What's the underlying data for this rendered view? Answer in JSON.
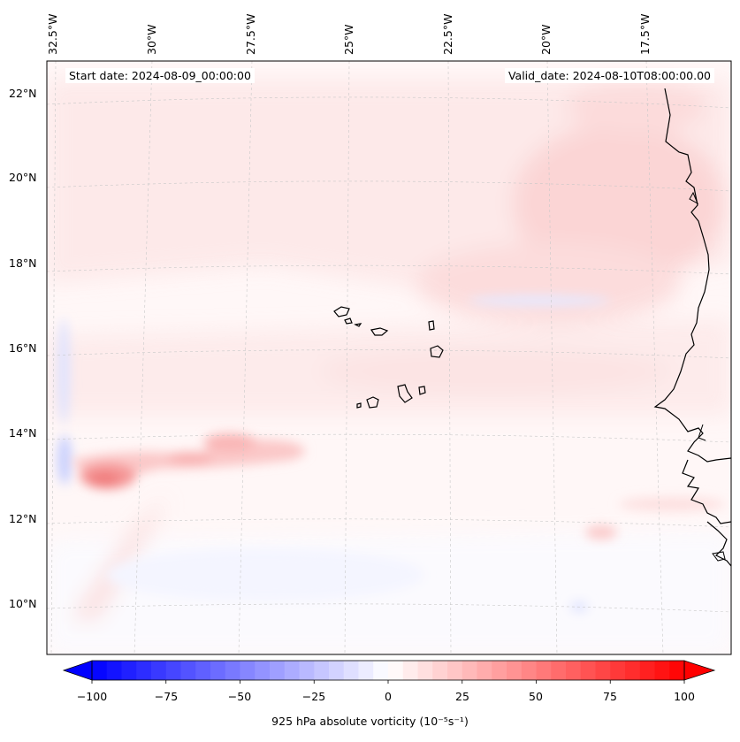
{
  "map": {
    "start_date": "Start date: 2024-08-09_00:00:00",
    "valid_date": "Valid_date: 2024-08-10T08:00:00.00",
    "longitude_labels": [
      "32.5°W",
      "30°W",
      "27.5°W",
      "25°W",
      "22.5°W",
      "20°W",
      "17.5°W"
    ],
    "latitude_labels": [
      "22°N",
      "20°N",
      "18°N",
      "16°N",
      "14°N",
      "12°N",
      "10°N"
    ],
    "land_outline_color": "#000000",
    "gridline_color": "#c8c8c8"
  },
  "colorbar": {
    "label": "925 hPa absolute vorticity (10⁻⁵s⁻¹)",
    "tick_labels": [
      "−100",
      "−75",
      "−50",
      "−25",
      "0",
      "25",
      "50",
      "75",
      "100"
    ],
    "min": -100,
    "max": 100,
    "colormap": "bwr",
    "extend": "both",
    "colors": {
      "negative": "#0000ff",
      "zero": "#ffffff",
      "positive": "#ff0000"
    }
  }
}
